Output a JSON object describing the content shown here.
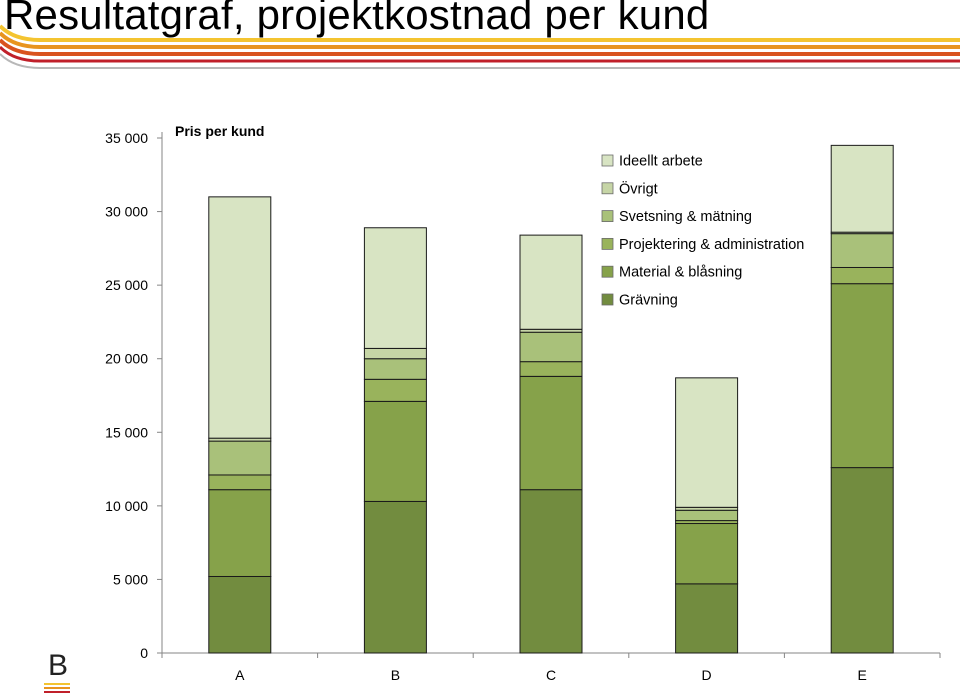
{
  "slide": {
    "title": "Resultatgraf, projektkostnad per kund",
    "logo_text": "B",
    "stripe_colors": [
      "#F4C430",
      "#E8941E",
      "#D9531E",
      "#C0202A",
      "#B8B8B8"
    ]
  },
  "chart_data": {
    "type": "bar",
    "stacked": true,
    "title": "Pris per kund",
    "xlabel": "",
    "ylabel": "",
    "ylim": [
      0,
      35000
    ],
    "yticks": [
      0,
      5000,
      10000,
      15000,
      20000,
      25000,
      30000,
      35000
    ],
    "ytick_labels": [
      "0",
      "5 000",
      "10 000",
      "15 000",
      "20 000",
      "25 000",
      "30 000",
      "35 000"
    ],
    "categories": [
      "A",
      "B",
      "C",
      "D",
      "E"
    ],
    "legend_position": "top-right",
    "grid": false,
    "series": [
      {
        "name": "Grävning",
        "color": "#728C3F",
        "values": [
          5200,
          10300,
          11100,
          4700,
          12600
        ]
      },
      {
        "name": "Material & blåsning",
        "color": "#86A24A",
        "values": [
          5900,
          6800,
          7700,
          4100,
          12500
        ]
      },
      {
        "name": "Projektering & administration",
        "color": "#99B35C",
        "values": [
          1000,
          1500,
          1000,
          200,
          1100
        ]
      },
      {
        "name": "Svetsning & mätning",
        "color": "#A9C17A",
        "values": [
          2300,
          1400,
          2000,
          700,
          2300
        ]
      },
      {
        "name": "Övrigt",
        "color": "#C6D5A6",
        "values": [
          200,
          700,
          200,
          200,
          100
        ]
      },
      {
        "name": "Ideellt arbete",
        "color": "#D8E4C3",
        "values": [
          16400,
          8200,
          6400,
          8800,
          5900
        ]
      }
    ]
  }
}
